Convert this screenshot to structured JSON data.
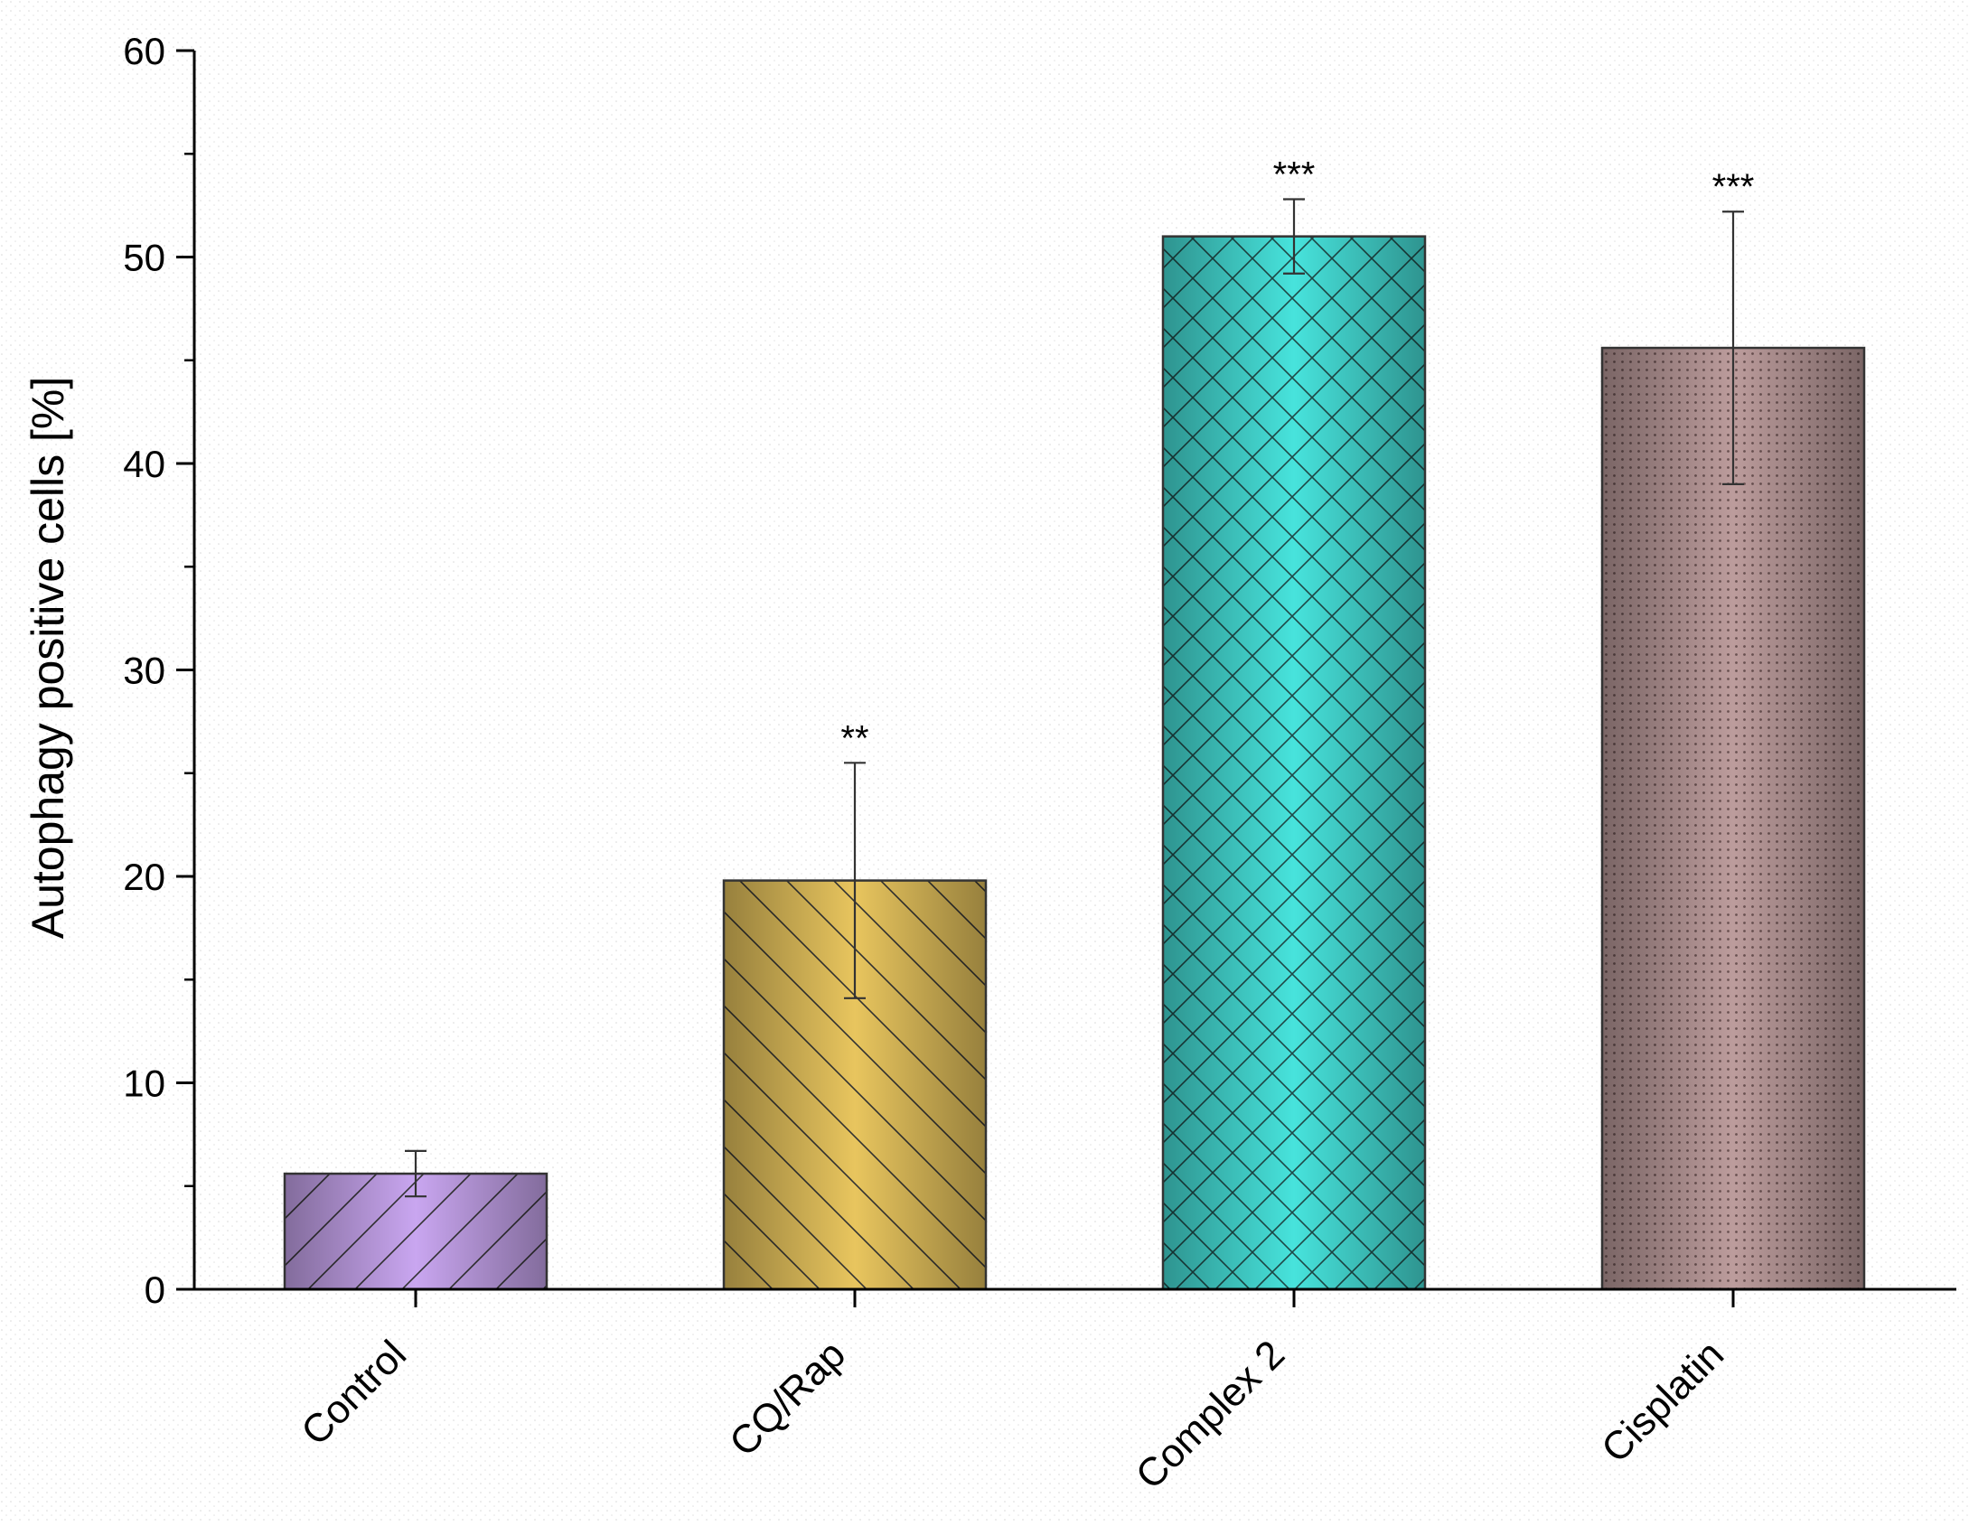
{
  "chart_data": {
    "type": "bar",
    "title": "",
    "xlabel": "",
    "ylabel": "Autophagy positive cells [%]",
    "ylim": [
      0,
      60
    ],
    "y_ticks": [
      "0",
      "10",
      "20",
      "30",
      "40",
      "50",
      "60"
    ],
    "y_tick_values": [
      0,
      10,
      20,
      30,
      40,
      50,
      60
    ],
    "y_minor_step": 5,
    "grid": false,
    "categories": [
      "Control",
      "CQ/Rap",
      "Complex 2",
      "Cisplatin"
    ],
    "values": [
      5.6,
      19.8,
      51.0,
      45.6
    ],
    "errors": [
      1.1,
      5.7,
      1.8,
      6.6
    ],
    "significance": [
      "",
      "**",
      "***",
      "***"
    ],
    "colors": [
      "#c9a6f0",
      "#e8c55e",
      "#47e3dc",
      "#bc9c9c"
    ],
    "patterns": [
      "diag-up",
      "diag-down",
      "crosshatch",
      "dots"
    ]
  }
}
